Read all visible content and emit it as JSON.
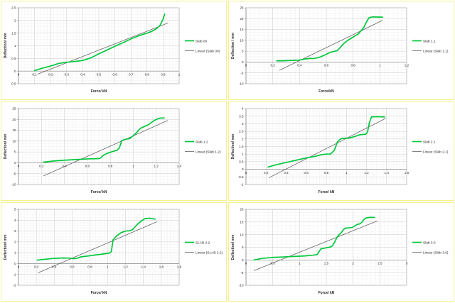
{
  "page": {
    "background": "#ffffff",
    "panel_border_color": "#f6f089",
    "plot_border_color": "#ababab",
    "major_grid_color": "#c8c8c8",
    "minor_grid_color": "#ededed",
    "axis_line_color": "#7f7f7f",
    "text_color": "#262626"
  },
  "chart_data": [
    {
      "type": "line",
      "name": "slab-00",
      "title": "",
      "xlabel": "Force/ kN",
      "ylabel": "Deflection/ mm",
      "x_range": [
        0,
        1
      ],
      "y_range": [
        -0.5,
        2.5
      ],
      "x_ticks": [
        "0",
        "0.1",
        "0.2",
        "0.3",
        "0.4",
        "0.5",
        "0.6",
        "0.7",
        "0.8",
        "0.9",
        "1"
      ],
      "y_ticks": [
        "-0.5",
        "0",
        "0.5",
        "1",
        "1.5",
        "2",
        "2.5"
      ],
      "grid": true,
      "legend_position": "right",
      "series": [
        {
          "name": "Slab 00",
          "color": "#00c83c",
          "points": [
            [
              0.1,
              0.02
            ],
            [
              0.15,
              0.12
            ],
            [
              0.2,
              0.2
            ],
            [
              0.25,
              0.3
            ],
            [
              0.3,
              0.35
            ],
            [
              0.35,
              0.38
            ],
            [
              0.4,
              0.42
            ],
            [
              0.45,
              0.52
            ],
            [
              0.5,
              0.68
            ],
            [
              0.55,
              0.83
            ],
            [
              0.6,
              0.98
            ],
            [
              0.65,
              1.12
            ],
            [
              0.7,
              1.27
            ],
            [
              0.75,
              1.4
            ],
            [
              0.8,
              1.5
            ],
            [
              0.83,
              1.57
            ],
            [
              0.86,
              1.68
            ],
            [
              0.88,
              1.8
            ],
            [
              0.9,
              2.05
            ],
            [
              0.91,
              2.25
            ]
          ]
        },
        {
          "name": "Linear (Slab 00)",
          "color": "#4d4d4d",
          "points": [
            [
              0.12,
              -0.12
            ],
            [
              0.93,
              1.9
            ]
          ]
        }
      ]
    },
    {
      "type": "line",
      "name": "slab-1-1",
      "title": "",
      "xlabel": "Force/kN",
      "ylabel": "Deflection / mm",
      "x_range": [
        0,
        1.2
      ],
      "y_range": [
        -10,
        25
      ],
      "x_ticks": [
        "0",
        "0.2",
        "0.4",
        "0.6",
        "0.8",
        "1",
        "1.2"
      ],
      "y_ticks": [
        "-10",
        "-5",
        "0",
        "5",
        "10",
        "15",
        "20",
        "25"
      ],
      "grid": true,
      "legend_position": "right",
      "series": [
        {
          "name": "Slab 1.1",
          "color": "#00c83c",
          "points": [
            [
              0.23,
              0.6
            ],
            [
              0.28,
              0.6
            ],
            [
              0.32,
              0.7
            ],
            [
              0.36,
              0.8
            ],
            [
              0.4,
              0.9
            ],
            [
              0.44,
              1.4
            ],
            [
              0.48,
              1.7
            ],
            [
              0.5,
              1.6
            ],
            [
              0.54,
              2.0
            ],
            [
              0.58,
              3.0
            ],
            [
              0.62,
              4.2
            ],
            [
              0.65,
              4.8
            ],
            [
              0.68,
              5.2
            ],
            [
              0.7,
              6.5
            ],
            [
              0.73,
              8.5
            ],
            [
              0.76,
              10.0
            ],
            [
              0.8,
              11.5
            ],
            [
              0.84,
              13.0
            ],
            [
              0.86,
              14.5
            ],
            [
              0.88,
              16.0
            ],
            [
              0.9,
              18.5
            ],
            [
              0.92,
              20.5
            ],
            [
              0.95,
              20.8
            ],
            [
              1.0,
              20.7
            ],
            [
              1.02,
              20.7
            ]
          ]
        },
        {
          "name": "Linear (Slab 1.1)",
          "color": "#4d4d4d",
          "points": [
            [
              0.25,
              -3.8
            ],
            [
              1.02,
              19.2
            ]
          ]
        }
      ]
    },
    {
      "type": "line",
      "name": "slab-1-2",
      "title": "",
      "xlabel": "Force/ kN",
      "ylabel": "Deflection/ mm",
      "x_range": [
        0,
        1.4
      ],
      "y_range": [
        -10,
        25
      ],
      "x_ticks": [
        "0",
        "0.2",
        "0.4",
        "0.6",
        "0.8",
        "1",
        "1.2",
        "1.4"
      ],
      "y_ticks": [
        "-10",
        "-5",
        "0",
        "5",
        "10",
        "15",
        "20",
        "25"
      ],
      "grid": true,
      "legend_position": "right",
      "series": [
        {
          "name": "Slab 1.2",
          "color": "#00c83c",
          "points": [
            [
              0.22,
              0.3
            ],
            [
              0.3,
              0.8
            ],
            [
              0.4,
              1.2
            ],
            [
              0.5,
              1.5
            ],
            [
              0.6,
              1.8
            ],
            [
              0.68,
              1.9
            ],
            [
              0.71,
              2.0
            ],
            [
              0.74,
              3.5
            ],
            [
              0.78,
              4.5
            ],
            [
              0.82,
              5.2
            ],
            [
              0.86,
              5.8
            ],
            [
              0.88,
              7.0
            ],
            [
              0.9,
              10.3
            ],
            [
              0.93,
              10.8
            ],
            [
              0.97,
              11.2
            ],
            [
              1.0,
              12.5
            ],
            [
              1.03,
              14.0
            ],
            [
              1.06,
              15.8
            ],
            [
              1.1,
              16.8
            ],
            [
              1.13,
              17.5
            ],
            [
              1.17,
              19.0
            ],
            [
              1.2,
              20.0
            ],
            [
              1.23,
              20.6
            ],
            [
              1.27,
              20.7
            ]
          ]
        },
        {
          "name": "Linear (Slab 1.2)",
          "color": "#4d4d4d",
          "points": [
            [
              0.22,
              -6.0
            ],
            [
              1.3,
              19.5
            ]
          ]
        }
      ]
    },
    {
      "type": "line",
      "name": "slab-2-1",
      "title": "",
      "xlabel": "Force/ kN",
      "ylabel": "Deflection/ mm",
      "x_range": [
        0,
        1.6
      ],
      "y_range": [
        -1,
        4
      ],
      "x_ticks": [
        "0",
        "0.2",
        "0.4",
        "0.6",
        "0.8",
        "1",
        "1.2",
        "1.4",
        "1.6"
      ],
      "y_ticks": [
        "-1",
        "-0.5",
        "0",
        "0.5",
        "1",
        "1.5",
        "2",
        "2.5",
        "3",
        "3.5",
        "4"
      ],
      "grid": true,
      "legend_position": "right",
      "series": [
        {
          "name": "Slab 2.1",
          "color": "#00c83c",
          "points": [
            [
              0.22,
              0.15
            ],
            [
              0.3,
              0.3
            ],
            [
              0.4,
              0.45
            ],
            [
              0.5,
              0.6
            ],
            [
              0.6,
              0.75
            ],
            [
              0.7,
              0.87
            ],
            [
              0.76,
              0.97
            ],
            [
              0.8,
              1.0
            ],
            [
              0.84,
              1.0
            ],
            [
              0.88,
              1.25
            ],
            [
              0.91,
              1.8
            ],
            [
              0.94,
              2.0
            ],
            [
              0.98,
              2.05
            ],
            [
              1.02,
              2.05
            ],
            [
              1.08,
              2.15
            ],
            [
              1.13,
              2.27
            ],
            [
              1.17,
              2.3
            ],
            [
              1.19,
              2.3
            ],
            [
              1.21,
              2.45
            ],
            [
              1.23,
              3.1
            ],
            [
              1.25,
              3.45
            ],
            [
              1.3,
              3.47
            ],
            [
              1.38,
              3.45
            ]
          ]
        },
        {
          "name": "Linear (Slab 2.1)",
          "color": "#4d4d4d",
          "points": [
            [
              0.23,
              -0.55
            ],
            [
              1.39,
              3.35
            ]
          ]
        }
      ]
    },
    {
      "type": "line",
      "name": "slab-2-2",
      "title": "",
      "xlabel": "Force/ kN",
      "ylabel": "Deflection/ mm",
      "x_range": [
        0,
        1.8
      ],
      "y_range": [
        -2,
        5
      ],
      "x_ticks": [
        "0",
        "0.2",
        "0.4",
        "0.6",
        "0.8",
        "1",
        "1.2",
        "1.4",
        "1.6",
        "1.8"
      ],
      "y_ticks": [
        "-2",
        "-1",
        "0",
        "1",
        "2",
        "3",
        "4",
        "5"
      ],
      "grid": true,
      "legend_position": "right",
      "series": [
        {
          "name": "SLAB 2.2",
          "color": "#00c83c",
          "points": [
            [
              0.21,
              0.32
            ],
            [
              0.3,
              0.4
            ],
            [
              0.4,
              0.48
            ],
            [
              0.5,
              0.52
            ],
            [
              0.57,
              0.5
            ],
            [
              0.62,
              0.45
            ],
            [
              0.66,
              0.5
            ],
            [
              0.7,
              0.62
            ],
            [
              0.78,
              0.7
            ],
            [
              0.85,
              0.78
            ],
            [
              0.92,
              0.85
            ],
            [
              0.98,
              0.92
            ],
            [
              1.02,
              0.97
            ],
            [
              1.04,
              1.1
            ],
            [
              1.06,
              2.2
            ],
            [
              1.1,
              2.55
            ],
            [
              1.15,
              2.85
            ],
            [
              1.2,
              3.0
            ],
            [
              1.25,
              3.02
            ],
            [
              1.28,
              3.15
            ],
            [
              1.33,
              3.6
            ],
            [
              1.38,
              3.95
            ],
            [
              1.42,
              4.15
            ],
            [
              1.47,
              4.18
            ],
            [
              1.53,
              4.1
            ]
          ]
        },
        {
          "name": "Linear (SLAB 2.2)",
          "color": "#4d4d4d",
          "points": [
            [
              0.22,
              -0.85
            ],
            [
              1.55,
              3.85
            ]
          ]
        }
      ]
    },
    {
      "type": "line",
      "name": "slab-3-0",
      "title": "",
      "xlabel": "Force/ kN",
      "ylabel": "Deflection/ mm",
      "x_range": [
        0,
        3
      ],
      "y_range": [
        -10,
        20
      ],
      "x_ticks": [
        "0",
        "0.5",
        "1",
        "1.5",
        "2",
        "2.5",
        "3"
      ],
      "y_ticks": [
        "-10",
        "-5",
        "0",
        "5",
        "10",
        "15",
        "20"
      ],
      "grid": true,
      "legend_position": "right",
      "series": [
        {
          "name": "Slab 3.0",
          "color": "#00c83c",
          "points": [
            [
              0.15,
              0.0
            ],
            [
              0.3,
              0.6
            ],
            [
              0.5,
              1.0
            ],
            [
              0.7,
              1.2
            ],
            [
              0.9,
              1.4
            ],
            [
              1.1,
              1.6
            ],
            [
              1.25,
              1.9
            ],
            [
              1.33,
              2.1
            ],
            [
              1.37,
              3.5
            ],
            [
              1.4,
              4.4
            ],
            [
              1.45,
              4.6
            ],
            [
              1.5,
              4.8
            ],
            [
              1.55,
              5.0
            ],
            [
              1.6,
              5.3
            ],
            [
              1.65,
              6.8
            ],
            [
              1.7,
              9.0
            ],
            [
              1.73,
              9.8
            ],
            [
              1.78,
              10.8
            ],
            [
              1.82,
              12.0
            ],
            [
              1.86,
              12.6
            ],
            [
              1.92,
              12.7
            ],
            [
              1.98,
              12.8
            ],
            [
              2.03,
              13.4
            ],
            [
              2.08,
              14.1
            ],
            [
              2.12,
              14.2
            ],
            [
              2.16,
              14.8
            ],
            [
              2.2,
              15.9
            ],
            [
              2.24,
              16.6
            ],
            [
              2.3,
              16.8
            ],
            [
              2.4,
              16.8
            ]
          ]
        },
        {
          "name": "Linear (Slab 3.0)",
          "color": "#4d4d4d",
          "points": [
            [
              0.15,
              -4.2
            ],
            [
              2.45,
              15.4
            ]
          ]
        }
      ]
    }
  ]
}
